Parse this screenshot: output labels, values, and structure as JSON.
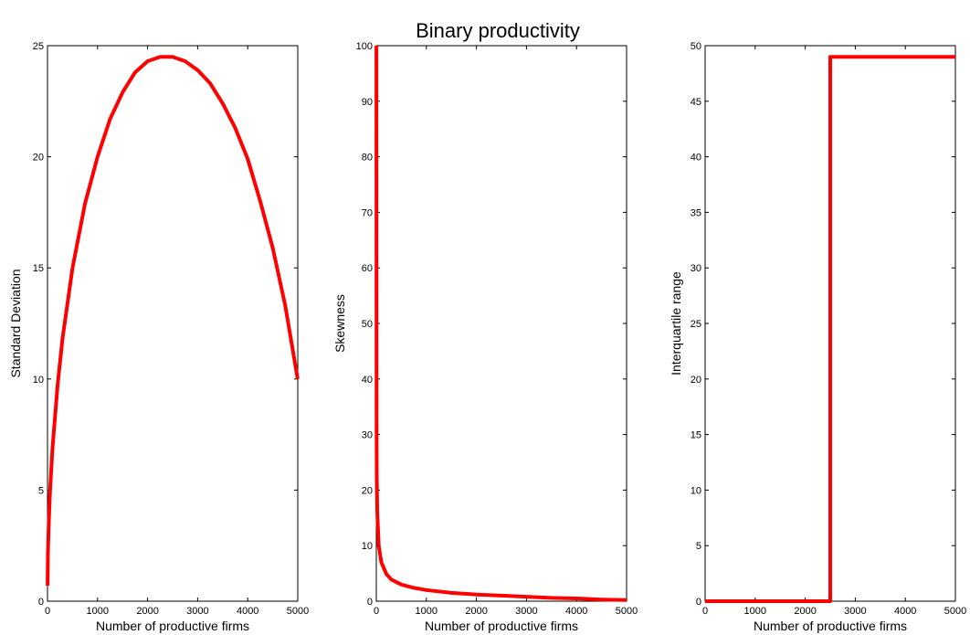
{
  "figure": {
    "title": "Binary productivity"
  },
  "colors": {
    "line": "#ff0000",
    "axis": "#000000",
    "background": "#ffffff"
  },
  "chart_data": [
    {
      "type": "line",
      "xlabel": "Number of productive firms",
      "ylabel": "Standard Deviation",
      "xlim": [
        0,
        5000
      ],
      "ylim": [
        0,
        25
      ],
      "xticks": [
        0,
        1000,
        2000,
        3000,
        4000,
        5000
      ],
      "yticks": [
        0,
        5,
        10,
        15,
        20,
        25
      ],
      "grid": false,
      "series": [
        {
          "x": [
            1,
            10,
            25,
            50,
            100,
            200,
            300,
            500,
            750,
            1000,
            1250,
            1500,
            1750,
            2000,
            2250,
            2500,
            2750,
            3000,
            3250,
            3500,
            3750,
            4000,
            4250,
            4500,
            4750,
            4999
          ],
          "values": [
            0.7,
            2.2,
            3.5,
            4.9,
            6.9,
            9.7,
            11.8,
            15.0,
            17.9,
            20.0,
            21.7,
            22.9,
            23.8,
            24.3,
            24.5,
            24.5,
            24.3,
            23.9,
            23.3,
            22.4,
            21.3,
            19.9,
            18.0,
            15.9,
            13.3,
            10.0
          ]
        }
      ]
    },
    {
      "type": "line",
      "xlabel": "Number of productive firms",
      "ylabel": "Skewness",
      "xlim": [
        0,
        5000
      ],
      "ylim": [
        0,
        100
      ],
      "xticks": [
        0,
        1000,
        2000,
        3000,
        4000,
        5000
      ],
      "yticks": [
        0,
        10,
        20,
        30,
        40,
        50,
        60,
        70,
        80,
        90,
        100
      ],
      "grid": false,
      "series": [
        {
          "x": [
            1,
            5,
            10,
            20,
            50,
            100,
            200,
            300,
            500,
            750,
            1000,
            1500,
            2000,
            2500,
            3000,
            3500,
            4000,
            4500,
            5000
          ],
          "values": [
            100,
            31.6,
            22.3,
            15.8,
            9.9,
            7.0,
            4.9,
            3.9,
            3.0,
            2.4,
            2.0,
            1.5,
            1.2,
            1.0,
            0.8,
            0.6,
            0.5,
            0.3,
            0.2
          ]
        }
      ]
    },
    {
      "type": "line",
      "xlabel": "Number of productive firms",
      "ylabel": "Interquartile range",
      "xlim": [
        0,
        5000
      ],
      "ylim": [
        0,
        50
      ],
      "xticks": [
        0,
        1000,
        2000,
        3000,
        4000,
        5000
      ],
      "yticks": [
        0,
        5,
        10,
        15,
        20,
        25,
        30,
        35,
        40,
        45,
        50
      ],
      "grid": false,
      "series": [
        {
          "x": [
            0,
            2500,
            2500,
            5000
          ],
          "values": [
            0,
            0,
            49,
            49
          ]
        }
      ]
    }
  ]
}
